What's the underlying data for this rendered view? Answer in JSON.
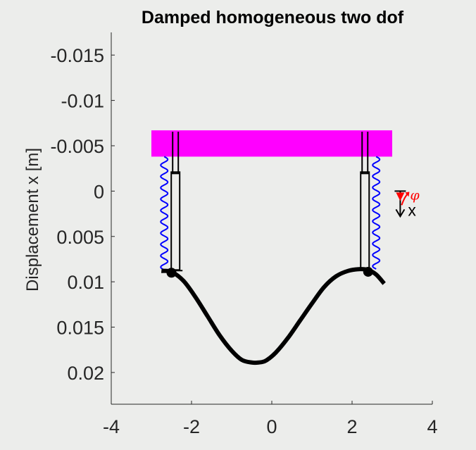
{
  "chart_data": {
    "type": "diagram",
    "title": "Damped homogeneous two dof",
    "ylabel": "Displacement x [m]",
    "xlabel": "",
    "xlim": [
      -4,
      4
    ],
    "ylim": [
      -0.0175,
      0.0235
    ],
    "y_reversed": true,
    "x_ticks": [
      -4,
      -2,
      0,
      2,
      4
    ],
    "x_tick_labels": [
      "-4",
      "-2",
      "0",
      "2",
      "4"
    ],
    "y_ticks": [
      -0.015,
      -0.01,
      -0.005,
      0,
      0.005,
      0.01,
      0.015,
      0.02
    ],
    "y_tick_labels": [
      "-0.015",
      "-0.01",
      "-0.005",
      "0",
      "0.005",
      "0.01",
      "0.015",
      "0.02"
    ],
    "base": {
      "x_min": -3,
      "x_max": 3,
      "y_top": -0.0067,
      "y_bottom": -0.0038,
      "color": "#ff00ff"
    },
    "beam": {
      "x": [
        -2.75,
        -2.5,
        -2.2,
        -1.9,
        -1.6,
        -1.3,
        -1.0,
        -0.75,
        -0.5,
        -0.33,
        -0.15,
        0.1,
        0.4,
        0.7,
        1.0,
        1.3,
        1.6,
        1.9,
        2.2,
        2.4,
        2.6,
        2.8
      ],
      "y": [
        0.0088,
        0.0089,
        0.0099,
        0.0117,
        0.0138,
        0.0159,
        0.0176,
        0.0186,
        0.0189,
        0.0189,
        0.0187,
        0.0178,
        0.0162,
        0.0143,
        0.0124,
        0.0106,
        0.0094,
        0.0088,
        0.0086,
        0.0087,
        0.0092,
        0.0102
      ],
      "color": "#000000"
    },
    "supports": [
      {
        "x": -2.5,
        "y": 0.009,
        "spring_x": -2.68,
        "damper_x": -2.4
      },
      {
        "x": 2.4,
        "y": 0.0089,
        "spring_x": 2.6,
        "damper_x": 2.32
      }
    ],
    "spring_color": "#0000ff",
    "coordinate_system": {
      "x": 3.2,
      "y": 0.0,
      "x_label": "x",
      "phi_label": "φ",
      "x_color": "#000000",
      "phi_color": "#ff0000"
    }
  }
}
